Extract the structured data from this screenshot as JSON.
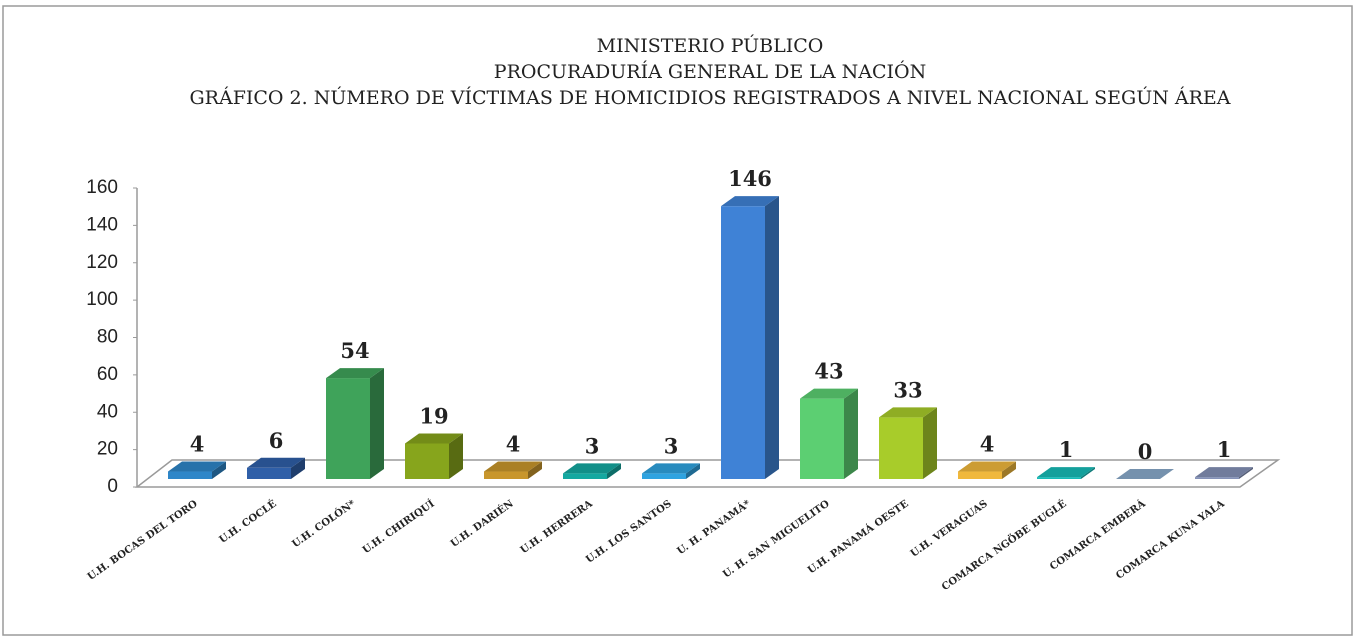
{
  "chart_data": {
    "type": "bar3d",
    "title": [
      "MINISTERIO PÚBLICO",
      "PROCURADURÍA GENERAL DE LA NACIÓN",
      "GRÁFICO 2. NÚMERO DE VÍCTIMAS DE HOMICIDIOS REGISTRADOS A NIVEL NACIONAL SEGÚN ÁREA"
    ],
    "categories": [
      "U.H. BOCAS DEL TORO",
      "U.H. COCLÉ",
      "U.H. COLÓN*",
      "U.H. CHIRIQUÍ",
      "U.H. DARIÉN",
      "U.H. HERRERA",
      "U.H. LOS SANTOS",
      "U. H. PANAMÁ*",
      "U. H. SAN MIGUELITO",
      "U.H. PANAMÁ OESTE",
      "U.H. VERAGUAS",
      "COMARCA NGÖBE BUGLÉ",
      "COMARCA EMBERÁ",
      "COMARCA KUNA YALA"
    ],
    "values": [
      4,
      6,
      54,
      19,
      4,
      3,
      3,
      146,
      43,
      33,
      4,
      1,
      0,
      1
    ],
    "colors": [
      "#2e86c8",
      "#2f5fa8",
      "#3fa35a",
      "#87a51c",
      "#c8962c",
      "#14a8a0",
      "#2fa3e0",
      "#3f82d6",
      "#5ccf72",
      "#a8cc2a",
      "#f0b83c",
      "#17bcb8",
      "#8aabcc",
      "#8592b8"
    ],
    "ylim": [
      0,
      160
    ],
    "yticks": [
      0,
      20,
      40,
      60,
      80,
      100,
      120,
      140,
      160
    ]
  }
}
